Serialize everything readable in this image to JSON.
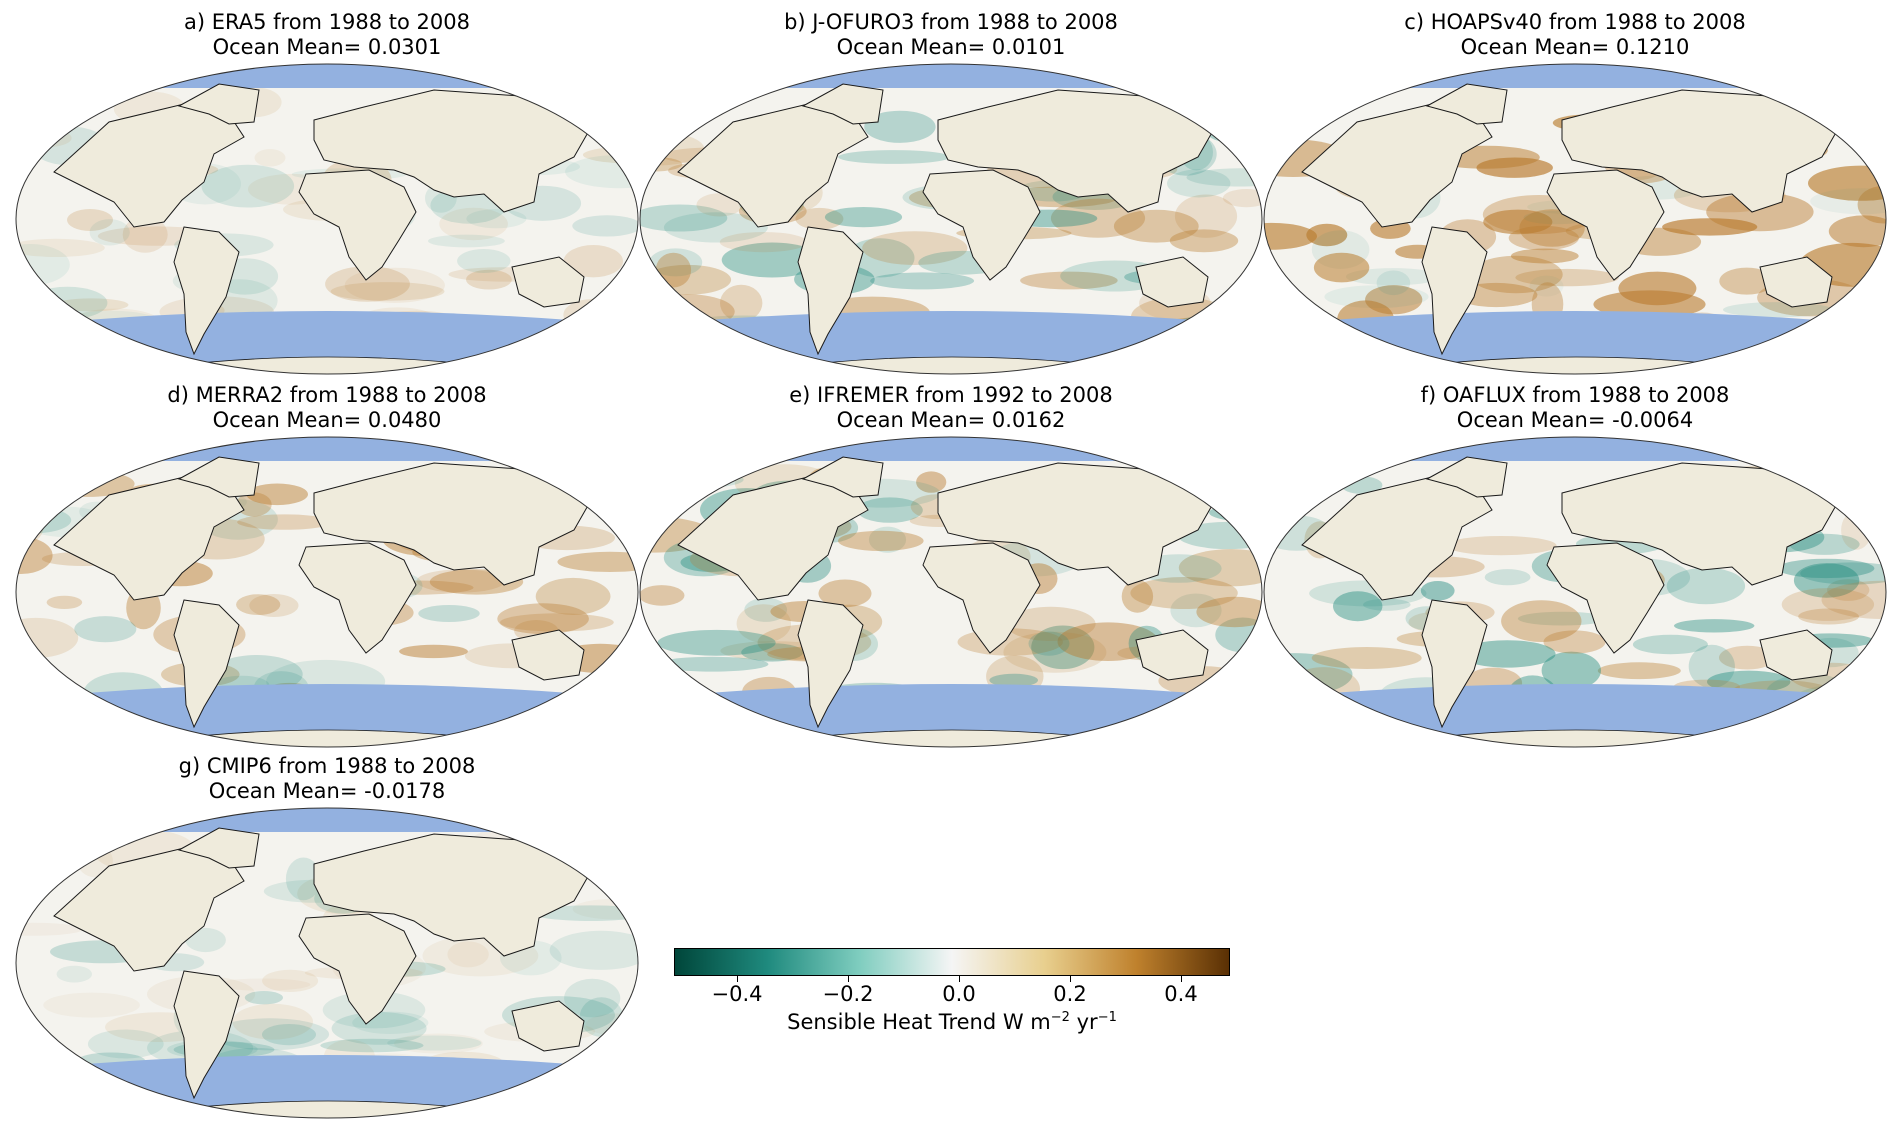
{
  "panels": [
    {
      "id": "a",
      "title": "a) ERA5 from 1988 to 2008",
      "mean": "Ocean Mean= 0.0301",
      "ocean_mean": 0.0301
    },
    {
      "id": "b",
      "title": "b) J-OFURO3 from 1988 to 2008",
      "mean": "Ocean Mean= 0.0101",
      "ocean_mean": 0.0101
    },
    {
      "id": "c",
      "title": "c) HOAPSv40 from 1988 to 2008",
      "mean": "Ocean Mean= 0.1210",
      "ocean_mean": 0.121
    },
    {
      "id": "d",
      "title": "d) MERRA2 from 1988 to 2008",
      "mean": "Ocean Mean= 0.0480",
      "ocean_mean": 0.048
    },
    {
      "id": "e",
      "title": "e) IFREMER from 1992 to 2008",
      "mean": "Ocean Mean= 0.0162",
      "ocean_mean": 0.0162
    },
    {
      "id": "f",
      "title": "f) OAFLUX from 1988 to 2008",
      "mean": "Ocean Mean= -0.0064",
      "ocean_mean": -0.0064
    },
    {
      "id": "g",
      "title": "g) CMIP6 from 1988 to 2008",
      "mean": "Ocean Mean= -0.0178",
      "ocean_mean": -0.0178
    }
  ],
  "colorbar": {
    "label_main": "Sensible Heat Trend W m",
    "label_exp1": "−2",
    "label_mid": " yr",
    "label_exp2": "−1",
    "ticks": [
      "−0.4",
      "−0.2",
      "0.0",
      "0.2",
      "0.4"
    ],
    "tick_values": [
      -0.4,
      -0.2,
      0.0,
      0.2,
      0.4
    ],
    "range": [
      -0.5,
      0.5
    ],
    "colors": [
      "#00463a",
      "#1f8a7e",
      "#7fcdbf",
      "#f5f5f5",
      "#e8cf8e",
      "#bf812d",
      "#5a3004"
    ]
  },
  "map_colors": {
    "land": "#efebdc",
    "ice": "#93b1e0",
    "coast": "#1a1a1a",
    "neutral_ocean": "#f4f3ee",
    "warm": "#b97b2e",
    "cool": "#1f8a7e"
  }
}
